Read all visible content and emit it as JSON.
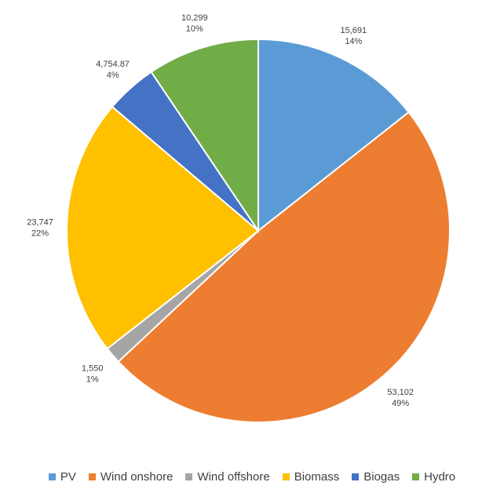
{
  "chart_data": {
    "type": "pie",
    "categories": [
      "PV",
      "Wind onshore",
      "Wind offshore",
      "Biomass",
      "Biogas",
      "Hydro"
    ],
    "values": [
      15691,
      53102,
      1550,
      23747,
      4754.87,
      10299
    ],
    "value_labels": [
      "15,691",
      "53,102",
      "1,550",
      "23,747",
      "4,754.87",
      "10,299"
    ],
    "percent_labels": [
      "14%",
      "49%",
      "1%",
      "22%",
      "4%",
      "10%"
    ],
    "colors": [
      "#5B9BD5",
      "#ED7D31",
      "#A5A5A5",
      "#FFC000",
      "#4472C4",
      "#70AD47"
    ],
    "legend_position": "bottom",
    "title": ""
  }
}
